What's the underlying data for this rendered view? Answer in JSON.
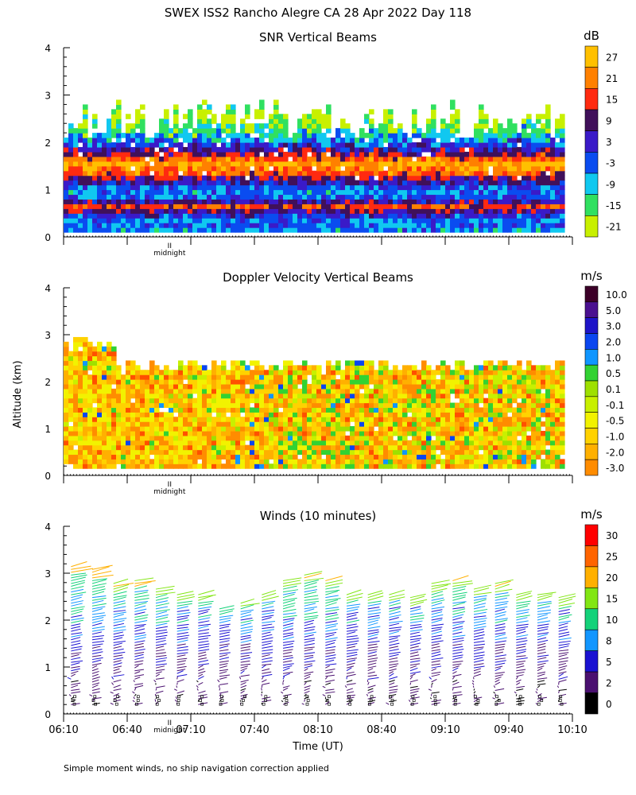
{
  "figure_title": "SWEX ISS2 Rancho Alegre CA  28 Apr 2022 Day 118",
  "y_axis_label": "Altitude (km)",
  "x_axis_label": "Time (UT)",
  "footnote": "Simple moment winds, no ship navigation correction applied",
  "midnight_label": "midnight",
  "midnight_marker": "II",
  "colors": {
    "snr_bins": [
      "#c8f000",
      "#30e060",
      "#10c8f0",
      "#0a4cf0",
      "#3a1ac8",
      "#40105a",
      "#ff2a10",
      "#ff8000",
      "#ffc000"
    ],
    "doppler_bins": [
      "#f00000",
      "#ff5000",
      "#ff8c00",
      "#ffb000",
      "#ffd200",
      "#f2f200",
      "#c8f000",
      "#9ee000",
      "#32d232",
      "#0f96ff",
      "#0a46f0",
      "#1e14c8",
      "#4a1090",
      "#3c0028"
    ],
    "wind_bins": [
      "#000000",
      "#4a1070",
      "#1a12d2",
      "#1296ff",
      "#14d27a",
      "#82e614",
      "#ffb000",
      "#ff6400",
      "#ff0000"
    ]
  },
  "chart_data": [
    {
      "type": "heatmap",
      "title": "SNR Vertical Beams",
      "colorbar_unit": "dB",
      "colorbar_labels": [
        "27",
        "21",
        "15",
        "9",
        "3",
        "-3",
        "-9",
        "-15",
        "-21"
      ],
      "colorbar_values": [
        27,
        21,
        15,
        9,
        3,
        -3,
        -9,
        -15,
        -21
      ],
      "ylim": [
        0,
        4
      ],
      "y_ticks": [
        "0",
        "1",
        "2",
        "3",
        "4"
      ],
      "xlim_minutes": [
        370,
        610
      ],
      "profile_altitudes_km": [
        0.15,
        0.25,
        0.35,
        0.45,
        0.55,
        0.65,
        0.75,
        0.85,
        0.95,
        1.05,
        1.15,
        1.25,
        1.35,
        1.45,
        1.55,
        1.65,
        1.75,
        1.85,
        1.95,
        2.05,
        2.15,
        2.25,
        2.35,
        2.45,
        2.55,
        2.65,
        2.75,
        2.85
      ],
      "profile_snr_db": [
        -6,
        -3,
        -5,
        0,
        8,
        15,
        6,
        -4,
        -6,
        -2,
        4,
        10,
        18,
        22,
        25,
        18,
        12,
        5,
        0,
        -5,
        -10,
        -14,
        -17,
        -19,
        -21,
        -21,
        -20,
        -21
      ],
      "data_top_km_range": [
        2.1,
        2.9
      ]
    },
    {
      "type": "heatmap",
      "title": "Doppler Velocity Vertical Beams",
      "colorbar_unit": "m/s",
      "colorbar_labels": [
        "10.0",
        "5.0",
        "3.0",
        "2.0",
        "1.0",
        "0.5",
        "0.1",
        "-0.1",
        "-0.5",
        "-1.0",
        "-2.0",
        "-3.0"
      ],
      "colorbar_values": [
        10.0,
        5.0,
        3.0,
        2.0,
        1.0,
        0.5,
        0.1,
        -0.1,
        -0.5,
        -1.0,
        -2.0,
        -3.0
      ],
      "ylim": [
        0,
        4
      ],
      "y_ticks": [
        "0",
        "1",
        "2",
        "3",
        "4"
      ],
      "xlim_minutes": [
        370,
        610
      ],
      "typical_velocity_range_ms": [
        -1.0,
        0.5
      ]
    },
    {
      "type": "scatter",
      "title": "Winds (10 minutes)",
      "colorbar_unit": "m/s",
      "colorbar_labels": [
        "30",
        "25",
        "20",
        "15",
        "10",
        "8",
        "5",
        "2",
        "0"
      ],
      "colorbar_values": [
        30,
        25,
        20,
        15,
        10,
        8,
        5,
        2,
        0
      ],
      "ylim": [
        0,
        4
      ],
      "y_ticks": [
        "0",
        "1",
        "2",
        "3",
        "4"
      ],
      "xlim_minutes": [
        370,
        610
      ],
      "x_tick_labels": [
        "06:10",
        "06:40",
        "07:10",
        "07:40",
        "08:10",
        "08:40",
        "09:10",
        "09:40",
        "10:10"
      ],
      "profile_times_minutes": [
        375,
        385,
        395,
        405,
        415,
        425,
        435,
        445,
        455,
        465,
        475,
        485,
        495,
        505,
        515,
        525,
        535,
        545,
        555,
        565,
        575,
        585,
        595,
        605
      ],
      "profile_top_km": [
        3.2,
        3.1,
        2.8,
        2.9,
        2.7,
        2.6,
        2.6,
        2.3,
        2.4,
        2.6,
        2.9,
        3.0,
        2.9,
        2.6,
        2.6,
        2.6,
        2.5,
        2.8,
        2.9,
        2.7,
        2.8,
        2.6,
        2.6,
        2.5
      ],
      "wind_speed_ms_by_altitude": [
        {
          "altitude_km": 0.3,
          "speed": 3
        },
        {
          "altitude_km": 0.7,
          "speed": 4
        },
        {
          "altitude_km": 1.1,
          "speed": 5
        },
        {
          "altitude_km": 1.5,
          "speed": 7
        },
        {
          "altitude_km": 1.9,
          "speed": 9
        },
        {
          "altitude_km": 2.3,
          "speed": 11
        },
        {
          "altitude_km": 2.7,
          "speed": 13
        },
        {
          "altitude_km": 3.0,
          "speed": 16
        }
      ]
    }
  ]
}
